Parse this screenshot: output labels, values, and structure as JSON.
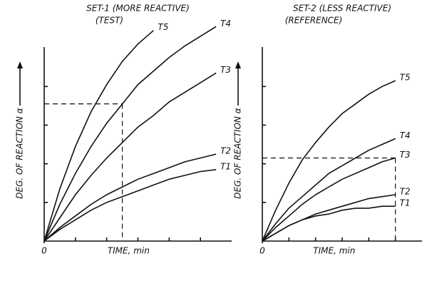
{
  "chart_data": [
    {
      "type": "line",
      "title": "SET-1 (MORE REACTIVE)",
      "subtitle": "(TEST)",
      "y_label": "DEG. OF REACTION α",
      "x_label": "TIME, min",
      "x": [
        0,
        0.5,
        1,
        1.5,
        2,
        2.5,
        3,
        3.5,
        4,
        4.5,
        5,
        5.5
      ],
      "series": [
        {
          "name": "T5",
          "color": "#111111",
          "values": [
            0,
            2.7,
            4.9,
            6.7,
            8.1,
            9.3,
            10.2,
            10.9,
            null,
            null,
            null,
            null
          ]
        },
        {
          "name": "T4",
          "color": "#111111",
          "values": [
            0,
            1.9,
            3.5,
            4.9,
            6.1,
            7.1,
            8.1,
            8.8,
            9.5,
            10.1,
            10.6,
            11.1
          ]
        },
        {
          "name": "T3",
          "color": "#111111",
          "values": [
            0,
            1.2,
            2.4,
            3.4,
            4.3,
            5.1,
            5.9,
            6.5,
            7.2,
            7.7,
            8.2,
            8.7
          ]
        },
        {
          "name": "T2",
          "color": "#111111",
          "values": [
            0,
            0.7,
            1.3,
            1.9,
            2.4,
            2.8,
            3.2,
            3.5,
            3.8,
            4.1,
            4.3,
            4.5
          ]
        },
        {
          "name": "T1",
          "color": "#111111",
          "values": [
            0,
            0.6,
            1.1,
            1.6,
            2.0,
            2.3,
            2.6,
            2.9,
            3.2,
            3.4,
            3.6,
            3.7
          ]
        }
      ],
      "guide": {
        "x": 2.5,
        "y": 7.1
      },
      "xlim": [
        0,
        6
      ],
      "ylim": [
        0,
        11
      ],
      "xticks": [
        0
      ]
    },
    {
      "type": "line",
      "title": "SET-2 (LESS REACTIVE)",
      "subtitle": "(REFERENCE)",
      "y_label": "DEG. OF REACTION α",
      "x_label": "TIME, min",
      "x": [
        0,
        0.5,
        1,
        1.5,
        2,
        2.5,
        3,
        3.5,
        4,
        4.5,
        5
      ],
      "series": [
        {
          "name": "T5",
          "color": "#111111",
          "values": [
            0,
            1.6,
            3.0,
            4.2,
            5.1,
            5.9,
            6.6,
            7.1,
            7.6,
            8.0,
            8.3
          ]
        },
        {
          "name": "T4",
          "color": "#111111",
          "values": [
            0,
            0.9,
            1.7,
            2.3,
            2.9,
            3.5,
            3.9,
            4.3,
            4.7,
            5.0,
            5.3
          ]
        },
        {
          "name": "T3",
          "color": "#111111",
          "values": [
            0,
            0.7,
            1.3,
            1.9,
            2.4,
            2.8,
            3.2,
            3.5,
            3.8,
            4.1,
            4.3
          ]
        },
        {
          "name": "T2",
          "color": "#111111",
          "values": [
            0,
            0.4,
            0.8,
            1.1,
            1.4,
            1.6,
            1.8,
            2.0,
            2.2,
            2.3,
            2.4
          ]
        },
        {
          "name": "T1",
          "color": "#111111",
          "values": [
            0,
            0.4,
            0.8,
            1.1,
            1.3,
            1.4,
            1.6,
            1.7,
            1.7,
            1.8,
            1.8
          ]
        }
      ],
      "guide": {
        "x": 5,
        "y": 4.3
      },
      "xlim": [
        0,
        6
      ],
      "ylim": [
        0,
        11
      ],
      "xticks": [
        0
      ]
    }
  ]
}
